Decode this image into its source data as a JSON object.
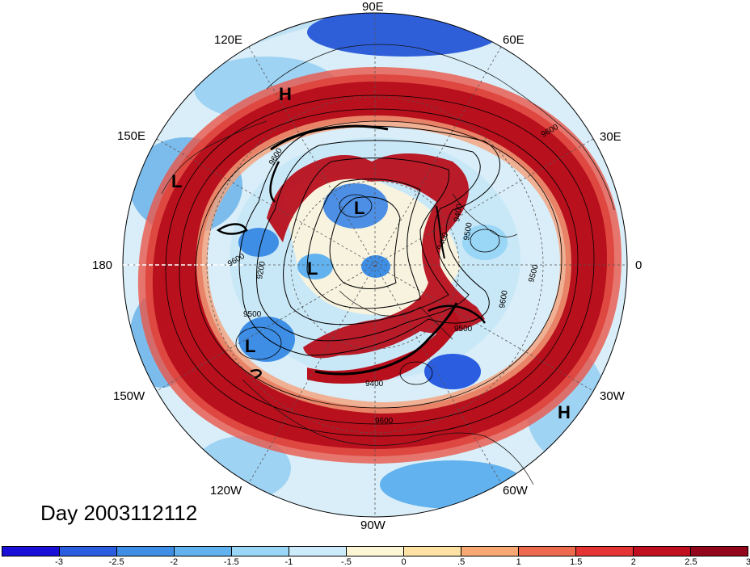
{
  "title": "Day 2003112112",
  "longitude_labels": {
    "deg90E": "90E",
    "deg60E": "60E",
    "deg30E": "30E",
    "deg0": "0",
    "deg30W": "30W",
    "deg60W": "60W",
    "deg90W": "90W",
    "deg120W": "120W",
    "deg150W": "150W",
    "deg180": "180",
    "deg150E": "150E",
    "deg120E": "120E"
  },
  "pressure_systems": [
    {
      "id": "high-east-asia",
      "label": "H"
    },
    {
      "id": "low-kamchatka",
      "label": "L"
    },
    {
      "id": "low-siberia",
      "label": "L"
    },
    {
      "id": "low-pole",
      "label": "L"
    },
    {
      "id": "low-gulf-alaska",
      "label": "L"
    },
    {
      "id": "high-atlantic",
      "label": "H"
    }
  ],
  "contour_labels": [
    "9600",
    "9500",
    "9600",
    "9200",
    "9400",
    "9500",
    "9600",
    "9400",
    "9600",
    "9500",
    "9500",
    "9400",
    "9600"
  ],
  "colorbar": {
    "colors": [
      "#1a0fd6",
      "#2a5de0",
      "#3e8ee6",
      "#62b2ef",
      "#9ad6f6",
      "#ccecfb",
      "#fdf6d5",
      "#fde2a3",
      "#f7a873",
      "#ee6a4e",
      "#e43433",
      "#c0101f",
      "#92051a"
    ],
    "tick_labels": [
      "-3",
      "-2.5",
      "-2",
      "-1.5",
      "-1",
      "-.5",
      "0",
      ".5",
      "1",
      "1.5",
      "2",
      "2.5",
      "3"
    ]
  }
}
